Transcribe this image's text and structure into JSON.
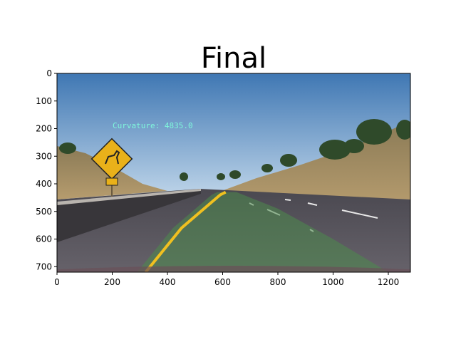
{
  "chart_data": {
    "type": "image",
    "title": "Final",
    "annotation": "Curvature: 4835.0",
    "xlim": [
      0,
      1280
    ],
    "ylim": [
      720,
      0
    ],
    "xticks": [
      0,
      200,
      400,
      600,
      800,
      1000,
      1200
    ],
    "yticks": [
      0,
      100,
      200,
      300,
      400,
      500,
      600,
      700
    ],
    "grid": false,
    "legend": "none",
    "lane_polygon": {
      "left_line": [
        [
          290,
          720
        ],
        [
          420,
          560
        ],
        [
          560,
          440
        ],
        [
          580,
          430
        ]
      ],
      "right_line": [
        [
          1200,
          720
        ],
        [
          1000,
          600
        ],
        [
          800,
          490
        ],
        [
          650,
          430
        ]
      ]
    },
    "colors": {
      "annotation": "#7ff8dc",
      "lane_fill": "#4d8a4d",
      "sky": "#5d8fc2",
      "road": "#5a5660"
    }
  }
}
